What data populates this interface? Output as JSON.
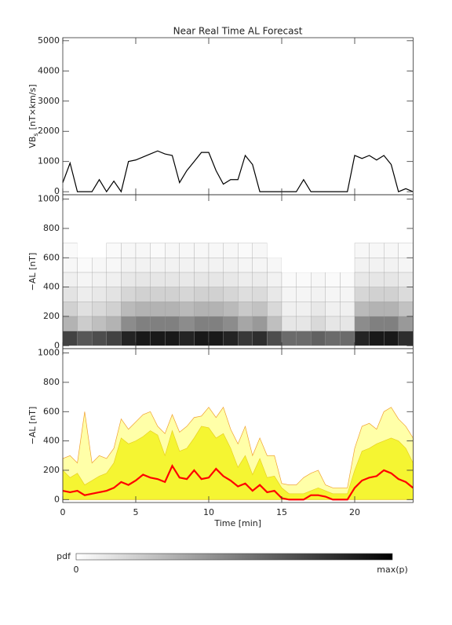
{
  "chart_data": [
    {
      "type": "line",
      "title": "Near Real Time AL Forecast",
      "ylabel": [
        "VB",
        "s",
        "[nT×km/s]"
      ],
      "xlim": [
        0,
        24
      ],
      "xticks": [
        0,
        5,
        10,
        15,
        20
      ],
      "show_xtick_labels": false,
      "ylim": [
        -100,
        5100
      ],
      "yticks": [
        0,
        1000,
        2000,
        3000,
        4000,
        5000
      ],
      "x": [
        0,
        0.5,
        1,
        1.5,
        2,
        2.5,
        3,
        3.5,
        4,
        4.5,
        5,
        5.5,
        6,
        6.5,
        7,
        7.5,
        8,
        8.5,
        9,
        9.5,
        10,
        10.5,
        11,
        11.5,
        12,
        12.5,
        13,
        13.5,
        14,
        14.5,
        15,
        15.5,
        16,
        16.5,
        17,
        17.5,
        18,
        18.5,
        19,
        19.5,
        20,
        20.5,
        21,
        21.5,
        22,
        22.5,
        23,
        23.5,
        24
      ],
      "series": [
        {
          "color": "#000000",
          "values": [
            300,
            950,
            0,
            0,
            0,
            400,
            0,
            350,
            0,
            1000,
            1050,
            1150,
            1250,
            1350,
            1250,
            1200,
            300,
            700,
            1000,
            1300,
            1300,
            700,
            250,
            400,
            400,
            1200,
            900,
            0,
            0,
            0,
            0,
            0,
            0,
            400,
            0,
            0,
            0,
            0,
            0,
            0,
            1200,
            1100,
            1200,
            1050,
            1200,
            900,
            0,
            100,
            0
          ]
        }
      ]
    },
    {
      "type": "heatmap",
      "ylabel": "−AL [nT]",
      "xlim": [
        0,
        24
      ],
      "xticks": [
        0,
        5,
        10,
        15,
        20
      ],
      "show_xtick_labels": false,
      "ylim": [
        -20,
        1030
      ],
      "yticks": [
        0,
        200,
        400,
        600,
        800,
        1000
      ],
      "x_bins": [
        0,
        1,
        2,
        3,
        4,
        5,
        6,
        7,
        8,
        9,
        10,
        11,
        12,
        13,
        14,
        15,
        16,
        17,
        18,
        19,
        20,
        21,
        22,
        23,
        24
      ],
      "y_bins": [
        0,
        100,
        200,
        300,
        400,
        500,
        600,
        700
      ],
      "z": [
        [
          0.74,
          0.66,
          0.7,
          0.74,
          0.86,
          0.9,
          0.9,
          0.9,
          0.86,
          0.9,
          0.9,
          0.86,
          0.78,
          0.82,
          0.7,
          0.58,
          0.58,
          0.62,
          0.58,
          0.58,
          0.86,
          0.9,
          0.9,
          0.82
        ],
        [
          0.3,
          0.2,
          0.25,
          0.3,
          0.45,
          0.5,
          0.5,
          0.5,
          0.45,
          0.5,
          0.5,
          0.45,
          0.35,
          0.4,
          0.25,
          0.1,
          0.1,
          0.15,
          0.1,
          0.1,
          0.45,
          0.5,
          0.5,
          0.4
        ],
        [
          0.18,
          0.12,
          0.15,
          0.18,
          0.27,
          0.3,
          0.3,
          0.3,
          0.27,
          0.3,
          0.3,
          0.27,
          0.21,
          0.24,
          0.15,
          0.06,
          0.06,
          0.09,
          0.06,
          0.06,
          0.27,
          0.3,
          0.3,
          0.24
        ],
        [
          0.11,
          0.07,
          0.09,
          0.11,
          0.16,
          0.18,
          0.18,
          0.18,
          0.16,
          0.18,
          0.18,
          0.16,
          0.13,
          0.14,
          0.09,
          0.04,
          0.04,
          0.05,
          0.04,
          0.04,
          0.16,
          0.18,
          0.18,
          0.14
        ],
        [
          0.06,
          0.04,
          0.05,
          0.06,
          0.09,
          0.1,
          0.1,
          0.1,
          0.09,
          0.1,
          0.1,
          0.09,
          0.07,
          0.08,
          0.05,
          0.02,
          0.02,
          0.03,
          0.02,
          0.02,
          0.09,
          0.1,
          0.1,
          0.08
        ],
        [
          0.03,
          0.02,
          0.03,
          0.03,
          0.05,
          0.05,
          0.05,
          0.05,
          0.05,
          0.05,
          0.05,
          0.05,
          0.04,
          0.04,
          0.03,
          0,
          0,
          0,
          0,
          0,
          0.05,
          0.05,
          0.05,
          0.04
        ],
        [
          0.02,
          0,
          0,
          0.02,
          0.03,
          0.03,
          0.02,
          0.03,
          0.03,
          0.03,
          0.03,
          0.03,
          0.02,
          0.03,
          0,
          0,
          0,
          0,
          0,
          0,
          0.03,
          0.03,
          0.03,
          0.02
        ]
      ],
      "colorbar": {
        "label": "pdf",
        "min_label": "0",
        "max_label": "max(p)"
      }
    },
    {
      "type": "area",
      "ylabel": "−AL [nT]",
      "xlabel": "Time [min]",
      "xlim": [
        0,
        24
      ],
      "xticks": [
        0,
        5,
        10,
        15,
        20
      ],
      "show_xtick_labels": true,
      "ylim": [
        -20,
        1030
      ],
      "yticks": [
        0,
        200,
        400,
        600,
        800,
        1000
      ],
      "x": [
        0,
        0.5,
        1,
        1.5,
        2,
        2.5,
        3,
        3.5,
        4,
        4.5,
        5,
        5.5,
        6,
        6.5,
        7,
        7.5,
        8,
        8.5,
        9,
        9.5,
        10,
        10.5,
        11,
        11.5,
        12,
        12.5,
        13,
        13.5,
        14,
        14.5,
        15,
        15.5,
        16,
        16.5,
        17,
        17.5,
        18,
        18.5,
        19,
        19.5,
        20,
        20.5,
        21,
        21.5,
        22,
        22.5,
        23,
        23.5,
        24
      ],
      "series": [
        {
          "style": "area",
          "color": "#ffffa8",
          "edge": "#f0a030",
          "values": [
            280,
            300,
            250,
            600,
            250,
            300,
            280,
            350,
            550,
            480,
            530,
            580,
            600,
            500,
            450,
            580,
            460,
            500,
            560,
            570,
            630,
            560,
            630,
            480,
            380,
            500,
            300,
            420,
            300,
            300,
            110,
            100,
            100,
            150,
            180,
            200,
            100,
            80,
            80,
            80,
            350,
            500,
            520,
            480,
            600,
            630,
            550,
            500,
            420
          ]
        },
        {
          "style": "area",
          "color": "#f5f532",
          "edge": "#e8d020",
          "values": [
            200,
            150,
            180,
            100,
            130,
            160,
            180,
            250,
            420,
            380,
            400,
            430,
            470,
            440,
            300,
            470,
            330,
            350,
            420,
            500,
            490,
            420,
            450,
            350,
            220,
            300,
            170,
            280,
            150,
            160,
            80,
            40,
            40,
            40,
            60,
            80,
            60,
            40,
            40,
            40,
            200,
            330,
            350,
            380,
            400,
            420,
            400,
            350,
            250
          ]
        },
        {
          "style": "line",
          "color": "#ff0000",
          "values": [
            60,
            50,
            60,
            30,
            40,
            50,
            60,
            80,
            120,
            100,
            130,
            170,
            150,
            140,
            120,
            230,
            150,
            140,
            200,
            140,
            150,
            210,
            160,
            130,
            90,
            110,
            60,
            100,
            50,
            60,
            10,
            0,
            0,
            0,
            30,
            30,
            20,
            0,
            0,
            0,
            80,
            130,
            150,
            160,
            200,
            180,
            140,
            120,
            80
          ]
        }
      ]
    }
  ]
}
